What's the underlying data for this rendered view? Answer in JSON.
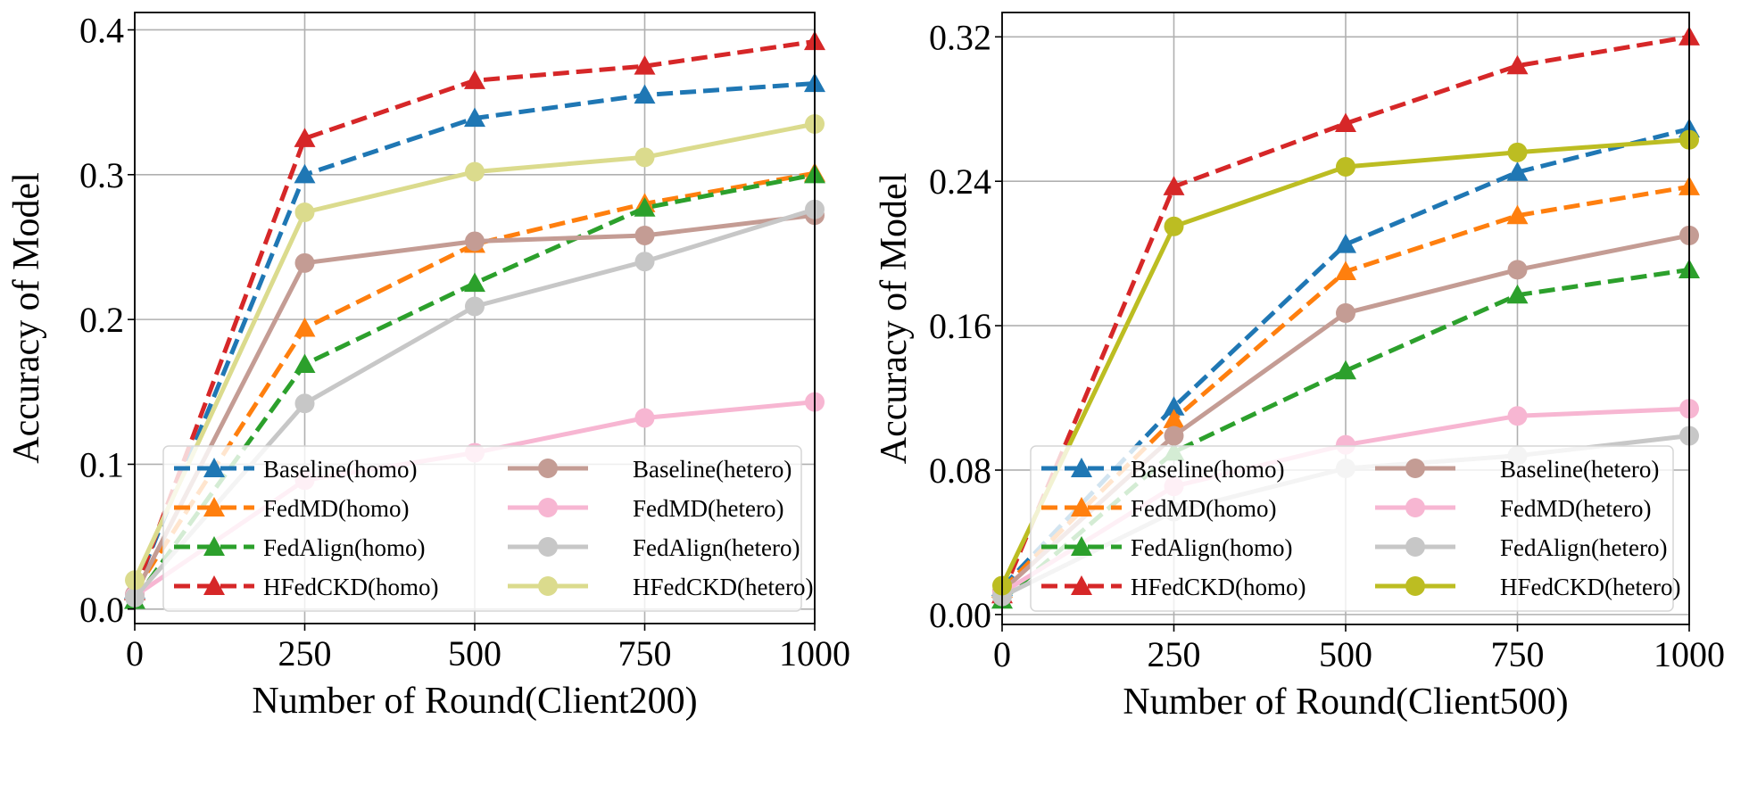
{
  "chart_data": [
    {
      "type": "line",
      "title": "",
      "xlabel": "Number of Round(Client200)",
      "ylabel": "Accuracy of Model",
      "x": [
        0,
        250,
        500,
        750,
        1000
      ],
      "xticks": [
        "0",
        "250",
        "500",
        "750",
        "1000"
      ],
      "yticks": [
        "0.0",
        "0.1",
        "0.2",
        "0.3",
        "0.4"
      ],
      "ytick_values": [
        0.0,
        0.1,
        0.2,
        0.3,
        0.4
      ],
      "xlim": [
        0,
        1000
      ],
      "ylim": [
        -0.01,
        0.412
      ],
      "grid": true,
      "legend_placement": "lower-right",
      "legend_columns": 2,
      "series": [
        {
          "name": "Baseline(homo)",
          "color": "#1f77b4",
          "style": "dashed",
          "marker": "triangle",
          "values": [
            0.013,
            0.3,
            0.339,
            0.355,
            0.363
          ]
        },
        {
          "name": "FedMD(homo)",
          "color": "#ff7f0e",
          "style": "dashed",
          "marker": "triangle",
          "values": [
            0.012,
            0.194,
            0.252,
            0.28,
            0.301
          ]
        },
        {
          "name": "FedAlign(homo)",
          "color": "#2ca02c",
          "style": "dashed",
          "marker": "triangle",
          "values": [
            0.006,
            0.169,
            0.225,
            0.277,
            0.3
          ]
        },
        {
          "name": "HFedCKD(homo)",
          "color": "#d62728",
          "style": "dashed",
          "marker": "triangle",
          "values": [
            0.012,
            0.325,
            0.365,
            0.375,
            0.392
          ]
        },
        {
          "name": "Baseline(hetero)",
          "color": "#c49c94",
          "style": "solid",
          "marker": "circle",
          "values": [
            0.01,
            0.239,
            0.254,
            0.258,
            0.272
          ]
        },
        {
          "name": "FedMD(hetero)",
          "color": "#f7b6d2",
          "style": "solid",
          "marker": "circle",
          "values": [
            0.009,
            0.089,
            0.108,
            0.132,
            0.143
          ]
        },
        {
          "name": "FedAlign(hetero)",
          "color": "#c7c7c7",
          "style": "solid",
          "marker": "circle",
          "values": [
            0.008,
            0.142,
            0.209,
            0.24,
            0.276
          ]
        },
        {
          "name": "HFedCKD(hetero)",
          "color": "#dbdb8d",
          "style": "solid",
          "marker": "circle",
          "values": [
            0.02,
            0.274,
            0.302,
            0.312,
            0.335
          ]
        }
      ]
    },
    {
      "type": "line",
      "title": "",
      "xlabel": "Number of Round(Client500)",
      "ylabel": "Accuracy of Model",
      "x": [
        0,
        250,
        500,
        750,
        1000
      ],
      "xticks": [
        "0",
        "250",
        "500",
        "750",
        "1000"
      ],
      "yticks": [
        "0.00",
        "0.08",
        "0.16",
        "0.24",
        "0.32"
      ],
      "ytick_values": [
        0.0,
        0.08,
        0.16,
        0.24,
        0.32
      ],
      "xlim": [
        0,
        1000
      ],
      "ylim": [
        -0.0055,
        0.3335
      ],
      "grid": true,
      "legend_placement": "lower-right",
      "legend_columns": 2,
      "series": [
        {
          "name": "Baseline(homo)",
          "color": "#1f77b4",
          "style": "dashed",
          "marker": "triangle",
          "values": [
            0.015,
            0.115,
            0.205,
            0.245,
            0.269
          ]
        },
        {
          "name": "FedMD(homo)",
          "color": "#ff7f0e",
          "style": "dashed",
          "marker": "triangle",
          "values": [
            0.014,
            0.108,
            0.19,
            0.221,
            0.237
          ]
        },
        {
          "name": "FedAlign(homo)",
          "color": "#2ca02c",
          "style": "dashed",
          "marker": "triangle",
          "values": [
            0.008,
            0.09,
            0.135,
            0.177,
            0.191
          ]
        },
        {
          "name": "HFedCKD(homo)",
          "color": "#d62728",
          "style": "dashed",
          "marker": "triangle",
          "values": [
            0.011,
            0.237,
            0.272,
            0.304,
            0.32
          ]
        },
        {
          "name": "Baseline(hetero)",
          "color": "#c49c94",
          "style": "solid",
          "marker": "circle",
          "values": [
            0.013,
            0.099,
            0.167,
            0.191,
            0.21
          ]
        },
        {
          "name": "FedMD(hetero)",
          "color": "#f7b6d2",
          "style": "solid",
          "marker": "circle",
          "values": [
            0.012,
            0.071,
            0.094,
            0.11,
            0.114
          ]
        },
        {
          "name": "FedAlign(hetero)",
          "color": "#c7c7c7",
          "style": "solid",
          "marker": "circle",
          "values": [
            0.01,
            0.057,
            0.081,
            0.088,
            0.099
          ]
        },
        {
          "name": "HFedCKD(hetero)",
          "color": "#bcbd22",
          "style": "solid",
          "marker": "circle",
          "values": [
            0.016,
            0.215,
            0.248,
            0.256,
            0.263
          ]
        }
      ]
    }
  ]
}
